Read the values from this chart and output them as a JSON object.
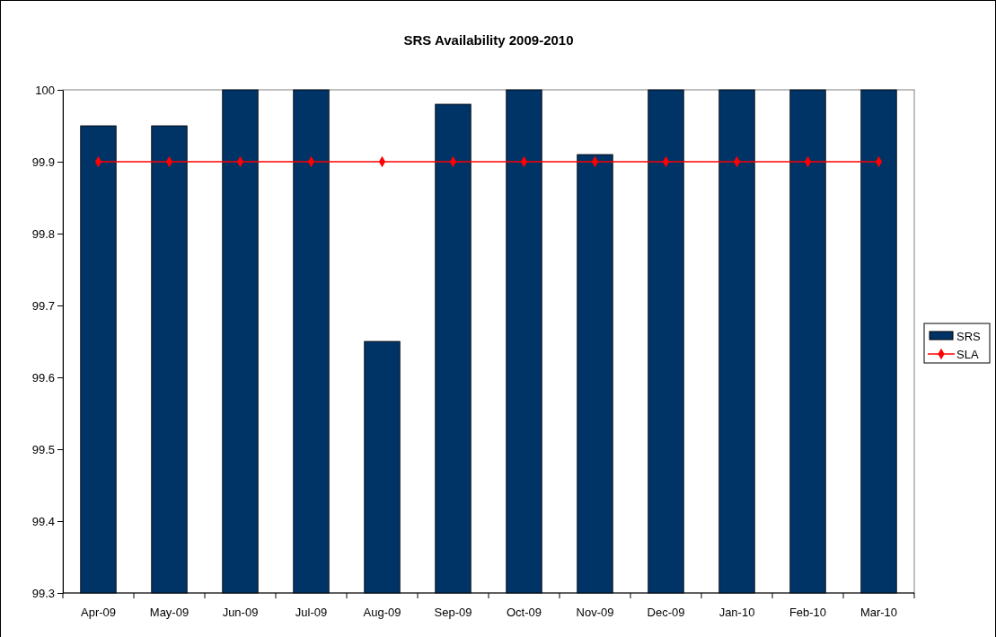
{
  "chart_data": {
    "type": "bar",
    "title": "SRS Availability 2009-2010",
    "categories": [
      "Apr-09",
      "May-09",
      "Jun-09",
      "Jul-09",
      "Aug-09",
      "Sep-09",
      "Oct-09",
      "Nov-09",
      "Dec-09",
      "Jan-10",
      "Feb-10",
      "Mar-10"
    ],
    "series": [
      {
        "name": "SRS",
        "color": "#003366",
        "values": [
          99.95,
          99.95,
          100,
          100,
          99.65,
          99.98,
          100,
          99.91,
          100,
          100,
          100,
          100
        ]
      },
      {
        "name": "SLA",
        "type": "line",
        "color": "#ff0000",
        "marker": "diamond",
        "values": [
          99.9,
          99.9,
          99.9,
          99.9,
          99.9,
          99.9,
          99.9,
          99.9,
          99.9,
          99.9,
          99.9,
          99.9
        ]
      }
    ],
    "ylim": [
      99.3,
      100
    ],
    "yticks": [
      {
        "value": 99.3,
        "label": "99.3"
      },
      {
        "value": 99.4,
        "label": "99.4"
      },
      {
        "value": 99.5,
        "label": "99.5"
      },
      {
        "value": 99.6,
        "label": "99.6"
      },
      {
        "value": 99.7,
        "label": "99.7"
      },
      {
        "value": 99.8,
        "label": "99.8"
      },
      {
        "value": 99.9,
        "label": "99.9"
      },
      {
        "value": 100,
        "label": "100"
      }
    ],
    "grid": false,
    "legend": "right"
  }
}
